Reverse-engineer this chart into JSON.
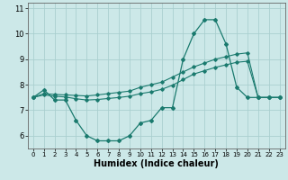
{
  "xlabel": "Humidex (Indice chaleur)",
  "xlim": [
    -0.5,
    23.5
  ],
  "ylim": [
    5.5,
    11.2
  ],
  "yticks": [
    6,
    7,
    8,
    9,
    10,
    11
  ],
  "xticks": [
    0,
    1,
    2,
    3,
    4,
    5,
    6,
    7,
    8,
    9,
    10,
    11,
    12,
    13,
    14,
    15,
    16,
    17,
    18,
    19,
    20,
    21,
    22,
    23
  ],
  "bg_color": "#cce8e8",
  "grid_color": "#aacfcf",
  "line_color": "#1a7a6e",
  "line1_x": [
    0,
    1,
    2,
    3,
    4,
    5,
    6,
    7,
    8,
    9,
    10,
    11,
    12,
    13,
    14,
    15,
    16,
    17,
    18,
    19,
    20,
    21,
    22,
    23
  ],
  "line1_y": [
    7.5,
    7.8,
    7.4,
    7.4,
    6.6,
    6.0,
    5.8,
    5.8,
    5.8,
    6.0,
    6.5,
    6.6,
    7.1,
    7.1,
    9.0,
    10.0,
    10.55,
    10.55,
    9.6,
    7.9,
    7.5,
    7.5,
    7.5,
    7.5
  ],
  "line2_x": [
    0,
    1,
    2,
    3,
    4,
    5,
    6,
    7,
    8,
    9,
    10,
    11,
    12,
    13,
    14,
    15,
    16,
    17,
    18,
    19,
    20,
    21,
    22,
    23
  ],
  "line2_y": [
    7.5,
    7.65,
    7.62,
    7.6,
    7.58,
    7.56,
    7.6,
    7.65,
    7.7,
    7.75,
    7.9,
    8.0,
    8.1,
    8.3,
    8.5,
    8.7,
    8.85,
    9.0,
    9.1,
    9.2,
    9.25,
    7.5,
    7.5,
    7.5
  ],
  "line3_x": [
    0,
    1,
    2,
    3,
    4,
    5,
    6,
    7,
    8,
    9,
    10,
    11,
    12,
    13,
    14,
    15,
    16,
    17,
    18,
    19,
    20,
    21,
    22,
    23
  ],
  "line3_y": [
    7.5,
    7.6,
    7.55,
    7.52,
    7.45,
    7.4,
    7.42,
    7.46,
    7.5,
    7.55,
    7.65,
    7.72,
    7.82,
    7.98,
    8.2,
    8.42,
    8.55,
    8.68,
    8.78,
    8.88,
    8.92,
    7.5,
    7.5,
    7.5
  ],
  "xlabel_fontsize": 7,
  "tick_fontsize": 6
}
